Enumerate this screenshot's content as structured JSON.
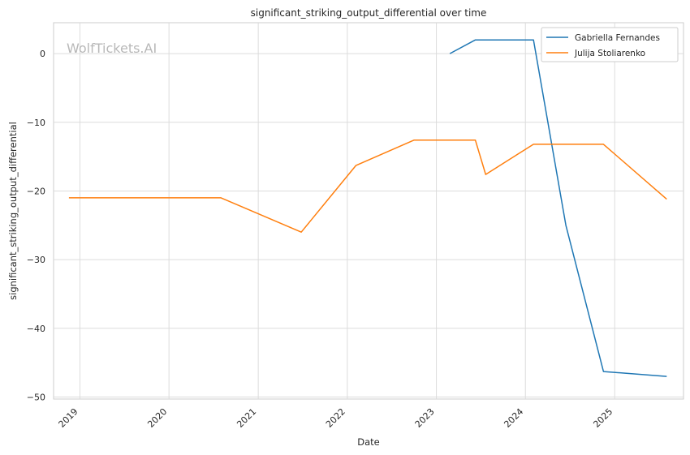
{
  "chart_data": {
    "type": "line",
    "title": "significant_striking_output_differential over time",
    "xlabel": "Date",
    "ylabel": "significant_striking_output_differential",
    "watermark": "WolfTickets.AI",
    "x_ticks": [
      "2019",
      "2020",
      "2021",
      "2022",
      "2023",
      "2024",
      "2025"
    ],
    "y_ticks": [
      "0",
      "−10",
      "−20",
      "−30",
      "−40",
      "−50"
    ],
    "ylim": [
      -50.3,
      4.5
    ],
    "xlim": [
      "2018-09-15",
      "2025-10-10"
    ],
    "grid": true,
    "legend_position": "top-right",
    "series": [
      {
        "name": "Gabriella Fernandes",
        "color": "#1f77b4",
        "points": [
          {
            "x": "2023-02-25",
            "y": 0
          },
          {
            "x": "2023-06-10",
            "y": 2
          },
          {
            "x": "2024-02-03",
            "y": 2
          },
          {
            "x": "2024-06-15",
            "y": -25
          },
          {
            "x": "2024-11-16",
            "y": -46.3
          },
          {
            "x": "2025-08-02",
            "y": -47
          }
        ]
      },
      {
        "name": "Julija Stoliarenko",
        "color": "#ff7f0e",
        "points": [
          {
            "x": "2018-11-17",
            "y": -21
          },
          {
            "x": "2020-08-01",
            "y": -21
          },
          {
            "x": "2021-06-26",
            "y": -26
          },
          {
            "x": "2022-02-05",
            "y": -16.3
          },
          {
            "x": "2022-10-01",
            "y": -12.6
          },
          {
            "x": "2023-06-10",
            "y": -12.6
          },
          {
            "x": "2023-07-22",
            "y": -17.6
          },
          {
            "x": "2024-02-03",
            "y": -13.2
          },
          {
            "x": "2024-11-16",
            "y": -13.2
          },
          {
            "x": "2025-08-02",
            "y": -21.2
          }
        ]
      }
    ]
  }
}
